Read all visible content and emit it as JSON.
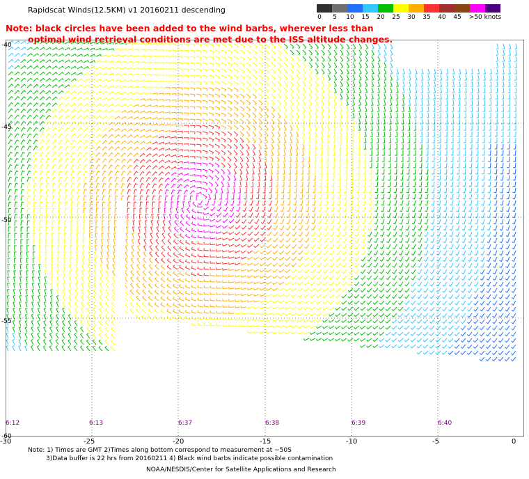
{
  "title": "Rapidscat Winds(12.5KM) v1 20160211 descending",
  "note": {
    "line1": "Note: black circles have been added to the wind barbs, wherever less than",
    "line2": "optimal wind retrieval conditions are met due to the ISS altitude changes."
  },
  "speed_scale": {
    "labels": [
      "0",
      "5",
      "10",
      "15",
      "20",
      "25",
      "30",
      "35",
      "40",
      "45",
      ">50 knots"
    ],
    "colors": [
      "#303030",
      "#707070",
      "#2070ff",
      "#30c8ff",
      "#00c000",
      "#ffff00",
      "#ffb000",
      "#ff3030",
      "#a03030",
      "#8b4513",
      "#ff00ff",
      "#4b0082"
    ]
  },
  "axes": {
    "lat_labels": [
      "-40",
      "-45",
      "-50",
      "-55",
      "-60"
    ],
    "lon_labels": [
      "-30",
      "-25",
      "-20",
      "-15",
      "-10",
      "-5",
      "0"
    ]
  },
  "time_labels": [
    "6:12",
    "6:13",
    "6:37",
    "6:38",
    "6:39",
    "6:40"
  ],
  "footer": {
    "line1": "Note: 1) Times are GMT 2)Times along bottom correspond to measurement at ~50S",
    "line2": "3)Data buffer is 22 hrs from 20160211 4) Black wind barbs indicate possible contamination",
    "line3": "NOAA/NESDIS/Center for Satellite Applications and Research"
  }
}
